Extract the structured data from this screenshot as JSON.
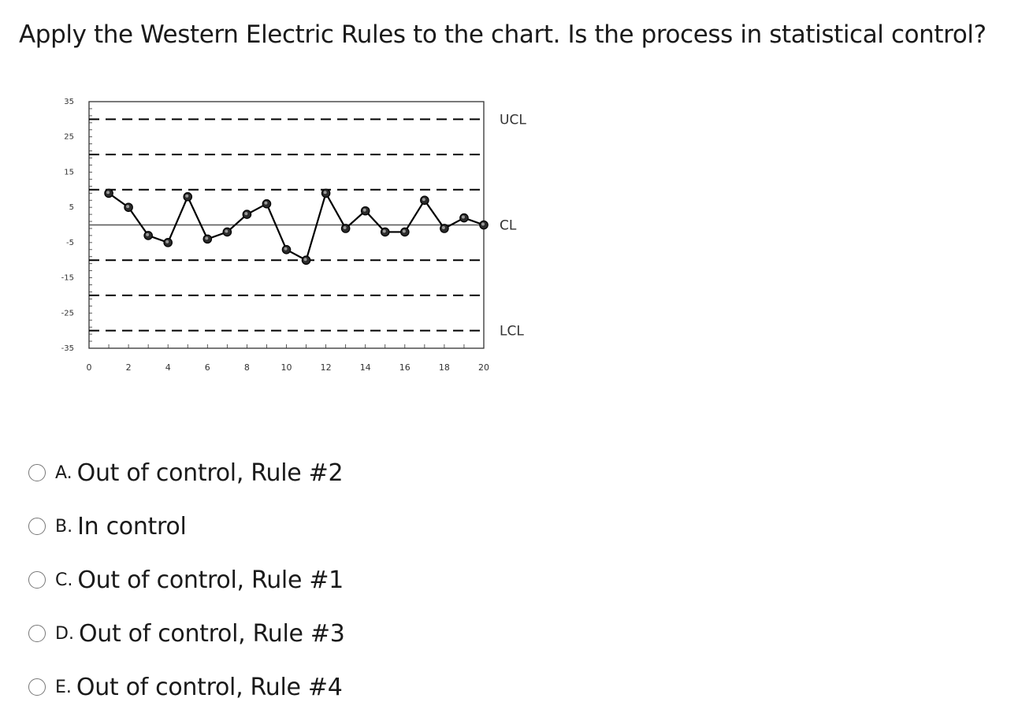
{
  "question": {
    "text": "Apply the Western Electric Rules to the chart. Is the process in statistical control?"
  },
  "chart_data": {
    "type": "line",
    "title": "",
    "xlabel": "",
    "ylabel": "",
    "xlim": [
      0,
      20
    ],
    "ylim": [
      -35,
      35
    ],
    "x_ticks": [
      0,
      2,
      4,
      6,
      8,
      10,
      12,
      14,
      16,
      18,
      20
    ],
    "y_ticks": [
      35,
      25,
      15,
      5,
      -5,
      -15,
      -25,
      -35
    ],
    "x": [
      1,
      2,
      3,
      4,
      5,
      6,
      7,
      8,
      9,
      10,
      11,
      12,
      13,
      14,
      15,
      16,
      17,
      18,
      19,
      20
    ],
    "values": [
      9,
      5,
      -3,
      -5,
      8,
      -4,
      -2,
      3,
      6,
      -7,
      -10,
      9,
      -1,
      4,
      -2,
      -2,
      7,
      -1,
      2,
      0
    ],
    "control_lines": [
      {
        "name": "UCL",
        "value": 30
      },
      {
        "name": "CL",
        "value": 0
      },
      {
        "name": "LCL",
        "value": -30
      }
    ],
    "zone_lines": [
      20,
      10,
      -10,
      -20
    ],
    "labels": {
      "ucl": "UCL",
      "cl": "CL",
      "lcl": "LCL"
    },
    "grid": false,
    "colors": {
      "line": "#000000",
      "marker": "#2b2b2b",
      "axis": "#333333",
      "dashed": "#000000",
      "centerline": "#555555"
    }
  },
  "options": [
    {
      "letter": "A.",
      "text": "Out of control, Rule #2"
    },
    {
      "letter": "B.",
      "text": "In control"
    },
    {
      "letter": "C.",
      "text": "Out of control, Rule #1"
    },
    {
      "letter": "D.",
      "text": "Out of control, Rule #3"
    },
    {
      "letter": "E.",
      "text": "Out of control, Rule #4"
    }
  ]
}
